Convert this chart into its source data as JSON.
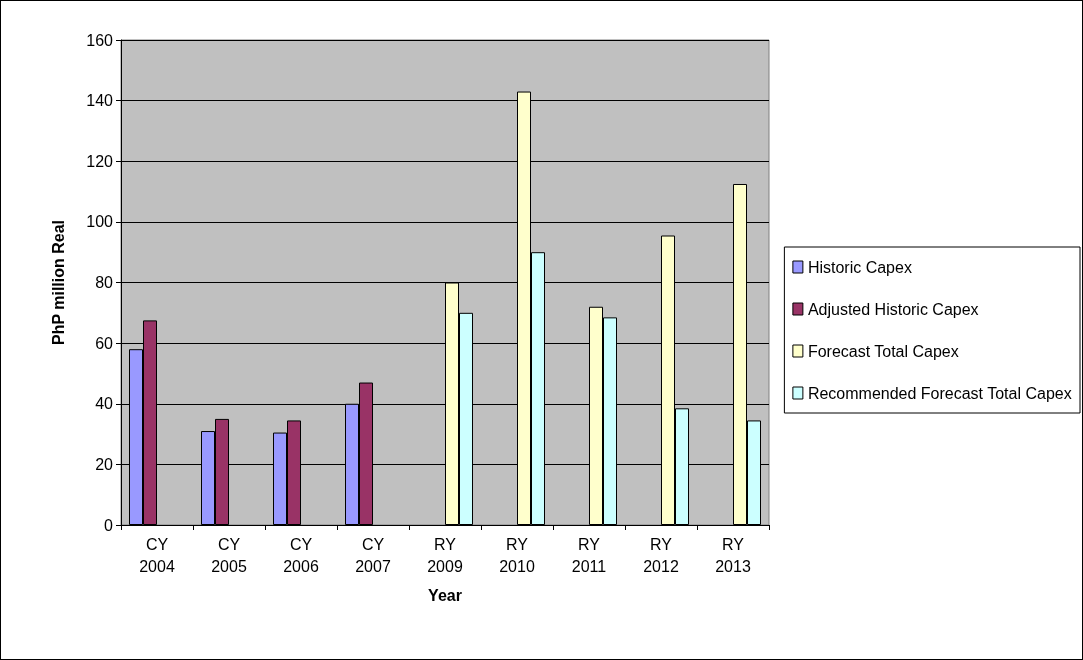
{
  "chart_data": {
    "type": "bar",
    "xlabel": "Year",
    "ylabel": "PhP million Real",
    "categories": [
      "CY\n2004",
      "CY\n2005",
      "CY\n2006",
      "CY\n2007",
      "RY\n2009",
      "RY\n2010",
      "RY\n2011",
      "RY\n2012",
      "RY\n2013"
    ],
    "series": [
      {
        "name": "Historic Capex",
        "color": "#9999ff",
        "values": [
          58,
          31,
          30.5,
          40,
          null,
          null,
          null,
          null,
          null
        ]
      },
      {
        "name": "Adjusted Historic Capex",
        "color": "#993366",
        "values": [
          67.5,
          35,
          34.5,
          47,
          null,
          null,
          null,
          null,
          null
        ]
      },
      {
        "name": "Forecast Total Capex",
        "color": "#ffffcc",
        "values": [
          null,
          null,
          null,
          null,
          80,
          143,
          72,
          95.5,
          112.5
        ]
      },
      {
        "name": "Recommended Forecast Total Capex",
        "color": "#ccffff",
        "values": [
          null,
          null,
          null,
          null,
          70,
          90,
          68.5,
          38.5,
          34.5
        ]
      }
    ],
    "ylim": [
      0,
      160
    ],
    "yticks": [
      0,
      20,
      40,
      60,
      80,
      100,
      120,
      140,
      160
    ],
    "grid": "y",
    "legend": "right"
  }
}
